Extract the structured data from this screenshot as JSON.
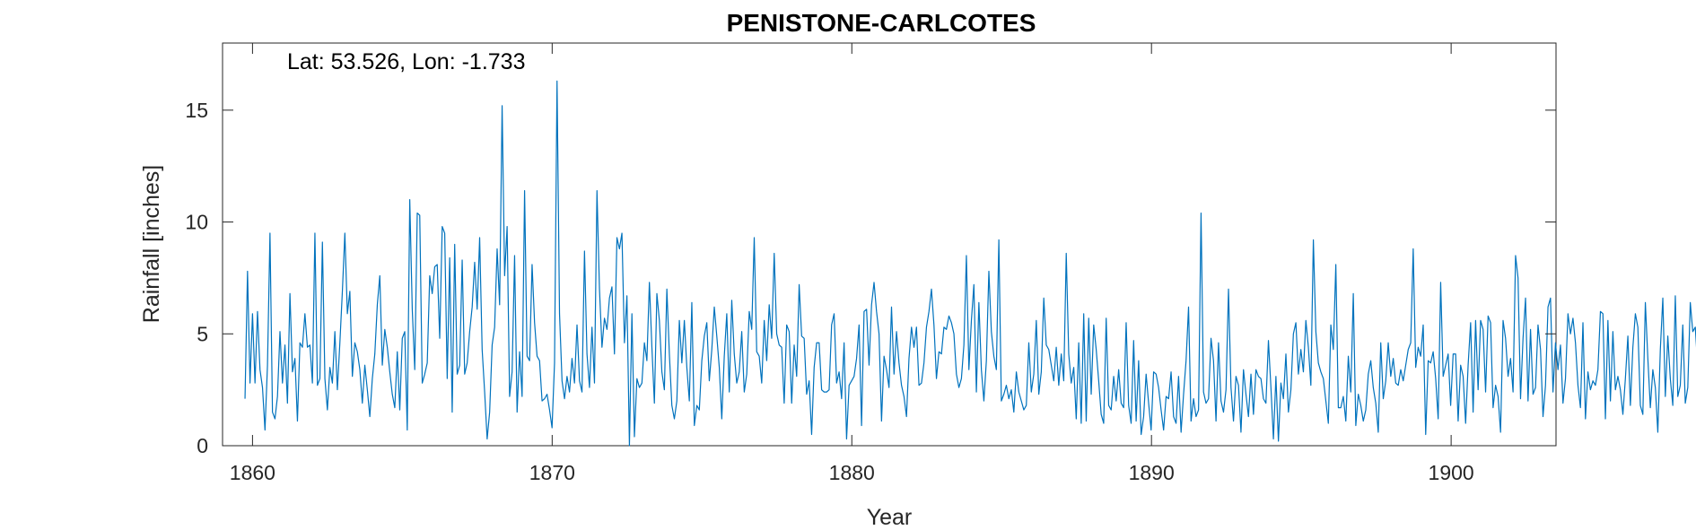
{
  "chart_data": {
    "type": "line",
    "title": "PENISTONE-CARLCOTES",
    "annotation": "Lat: 53.526, Lon: -1.733",
    "xlabel": "Year",
    "ylabel": "Rainfall [inches]",
    "xlim": [
      1859,
      1903.5
    ],
    "ylim": [
      0,
      18
    ],
    "xticks": [
      1860,
      1870,
      1880,
      1890,
      1900
    ],
    "yticks": [
      0,
      5,
      10,
      15
    ],
    "grid": false,
    "line_color": "#0072BD",
    "series": [
      {
        "x_start": 1859.75,
        "x_step": 0.0833,
        "values": [
          2.1,
          7.8,
          2.8,
          5.9,
          2.8,
          6.0,
          3.4,
          2.6,
          0.7,
          3.6,
          9.5,
          1.5,
          1.2,
          2.2,
          5.1,
          2.8,
          4.5,
          1.9,
          6.8,
          3.3,
          3.9,
          1.1,
          4.6,
          4.4,
          5.9,
          4.4,
          4.5,
          2.8,
          9.5,
          2.7,
          3.0,
          9.1,
          3.0,
          1.6,
          3.5,
          2.8,
          5.1,
          2.5,
          4.6,
          6.9,
          9.5,
          5.9,
          6.9,
          3.1,
          4.6,
          4.2,
          3.4,
          1.9,
          3.6,
          2.5,
          1.3,
          3.0,
          4.1,
          6.3,
          7.6,
          3.6,
          5.2,
          4.4,
          3.3,
          2.3,
          1.7,
          4.2,
          1.6,
          4.8,
          5.1,
          0.7,
          11.0,
          6.1,
          3.4,
          10.4,
          10.3,
          2.8,
          3.2,
          3.7,
          7.6,
          6.8,
          8.0,
          8.1,
          4.8,
          9.8,
          9.5,
          3.0,
          8.4,
          1.5,
          9.0,
          3.2,
          3.6,
          8.3,
          3.2,
          3.7,
          5.1,
          6.2,
          8.2,
          6.1,
          9.3,
          4.3,
          2.4,
          0.3,
          1.5,
          4.5,
          5.3,
          8.8,
          6.3,
          15.2,
          7.6,
          9.8,
          2.2,
          3.3,
          8.5,
          1.5,
          4.2,
          2.2,
          11.4,
          4.0,
          3.8,
          8.1,
          5.5,
          4.0,
          3.8,
          2.0,
          2.1,
          2.3,
          1.6,
          0.8,
          3.7,
          16.3,
          5.9,
          2.9,
          2.1,
          3.1,
          2.4,
          3.9,
          2.8,
          5.4,
          2.9,
          2.4,
          8.7,
          4.1,
          2.6,
          5.3,
          2.8,
          11.4,
          7.0,
          4.4,
          5.7,
          5.2,
          6.6,
          7.1,
          4.1,
          9.3,
          8.8,
          9.5,
          4.6,
          6.7,
          0.0,
          5.9,
          0.4,
          3.0,
          2.6,
          2.8,
          4.6,
          3.8,
          7.3,
          4.4,
          1.9,
          6.8,
          5.6,
          3.3,
          2.5,
          7.0,
          4.1,
          1.8,
          1.2,
          2.0,
          5.6,
          3.7,
          5.6,
          3.5,
          2.0,
          6.4,
          0.9,
          1.8,
          1.6,
          3.8,
          4.9,
          5.5,
          2.9,
          4.3,
          6.2,
          4.9,
          3.5,
          1.2,
          4.0,
          5.9,
          2.4,
          6.5,
          4.1,
          2.8,
          3.3,
          5.1,
          2.4,
          3.2,
          6.0,
          5.2,
          9.3,
          4.2,
          4.0,
          2.8,
          5.6,
          3.8,
          6.3,
          4.8,
          8.6,
          5.0,
          4.5,
          4.4,
          1.9,
          5.4,
          5.1,
          1.9,
          4.5,
          3.1,
          7.2,
          4.9,
          4.8,
          2.3,
          2.9,
          0.5,
          3.5,
          4.6,
          4.6,
          2.5,
          2.4,
          2.4,
          2.5,
          5.4,
          5.9,
          2.8,
          3.3,
          2.1,
          4.6,
          0.3,
          2.7,
          2.9,
          3.1,
          3.9,
          5.4,
          0.9,
          6.0,
          6.1,
          3.6,
          6.3,
          7.3,
          6.0,
          5.0,
          1.1,
          4.0,
          3.4,
          2.6,
          6.2,
          3.2,
          5.1,
          3.7,
          2.7,
          2.2,
          1.3,
          3.9,
          5.3,
          4.4,
          5.3,
          2.7,
          2.8,
          3.7,
          5.3,
          6.0,
          7.0,
          5.4,
          3.0,
          4.2,
          4.1,
          5.3,
          5.2,
          5.8,
          5.5,
          5.0,
          3.2,
          2.6,
          3.0,
          4.5,
          8.5,
          3.4,
          5.6,
          7.2,
          2.4,
          6.4,
          3.4,
          2.0,
          3.8,
          7.8,
          5.1,
          4.0,
          3.4,
          9.2,
          2.0,
          2.3,
          2.7,
          2.1,
          2.5,
          1.5,
          3.3,
          2.4,
          2.0,
          1.6,
          1.8,
          4.6,
          2.4,
          3.2,
          5.6,
          2.3,
          3.3,
          6.6,
          4.5,
          4.3,
          3.6,
          2.9,
          4.4,
          2.7,
          4.1,
          2.9,
          8.6,
          4.1,
          2.8,
          3.5,
          1.2,
          4.6,
          1.0,
          5.9,
          1.1,
          5.7,
          2.3,
          5.4,
          4.3,
          2.9,
          1.4,
          1.0,
          5.7,
          1.8,
          1.6,
          3.1,
          2.0,
          3.4,
          1.9,
          1.7,
          5.5,
          1.8,
          1.0,
          4.7,
          1.1,
          3.8,
          0.5,
          1.3,
          3.2,
          1.9,
          0.7,
          3.3,
          3.2,
          2.6,
          1.6,
          0.7,
          2.2,
          2.1,
          3.3,
          1.3,
          1.0,
          3.1,
          0.6,
          2.3,
          3.8,
          6.2,
          1.1,
          2.1,
          1.3,
          1.6,
          10.4,
          2.4,
          1.9,
          2.1,
          4.8,
          3.8,
          1.1,
          4.6,
          2.0,
          1.5,
          2.5,
          7.0,
          2.6,
          1.1,
          3.1,
          2.7,
          0.6,
          3.4,
          2.3,
          1.3,
          3.2,
          1.4,
          3.4,
          3.1,
          3.0,
          2.1,
          1.9,
          4.7,
          2.6,
          0.3,
          3.1,
          0.2,
          2.8,
          2.1,
          4.1,
          1.5,
          2.5,
          5.0,
          5.5,
          3.2,
          4.3,
          3.3,
          5.6,
          4.4,
          2.7,
          9.2,
          5.1,
          3.7,
          3.3,
          3.0,
          2.0,
          1.0,
          5.4,
          4.3,
          8.1,
          1.7,
          1.7,
          2.2,
          1.1,
          4.0,
          2.4,
          6.8,
          0.9,
          2.3,
          1.8,
          1.1,
          1.6,
          3.2,
          3.8,
          2.6,
          1.9,
          0.6,
          4.6,
          2.1,
          2.9,
          4.6,
          3.1,
          3.9,
          2.8,
          2.7,
          3.4,
          2.9,
          3.6,
          4.3,
          4.6,
          8.8,
          3.5,
          4.4,
          4.0,
          5.4,
          0.5,
          3.8,
          3.7,
          4.2,
          3.0,
          1.2,
          7.3,
          3.1,
          3.6,
          4.1,
          1.8,
          4.1,
          4.1,
          1.1,
          3.6,
          3.1,
          1.0,
          3.6,
          5.5,
          1.5,
          5.6,
          2.5,
          5.6,
          5.2,
          2.4,
          5.8,
          5.5,
          1.7,
          2.7,
          2.2,
          0.6,
          5.6,
          4.8,
          3.1,
          3.9,
          2.4,
          8.5,
          7.5,
          2.1,
          4.8,
          6.6,
          2.0,
          5.2,
          2.3,
          2.6,
          5.4,
          4.3,
          1.3,
          2.7,
          6.2,
          6.6,
          2.4,
          4.6,
          3.4,
          4.5,
          1.9,
          3.0,
          5.9,
          5.0,
          5.7,
          4.6,
          2.7,
          1.7,
          5.5,
          1.2,
          3.3,
          2.5,
          2.9,
          2.7,
          3.4,
          6.0,
          5.9,
          1.2,
          5.6,
          2.0,
          5.1,
          2.5,
          3.1,
          2.5,
          1.4,
          3.0,
          4.9,
          1.8,
          4.4,
          5.9,
          5.3,
          1.8,
          1.4,
          6.4,
          3.9,
          1.7,
          3.4,
          2.6,
          0.6,
          4.3,
          6.6,
          2.2,
          4.9,
          3.0,
          1.8,
          6.7,
          2.2,
          2.7,
          5.4,
          1.9,
          2.6,
          6.4,
          5.1,
          5.3,
          3.5,
          4.2,
          1.1,
          5.8,
          6.3,
          5.6,
          2.3,
          2.1,
          3.1,
          4.5,
          6.1,
          5.1,
          3.1,
          2.7,
          3.9,
          5.3,
          1.8,
          4.2,
          6.1,
          1.3,
          2.6,
          6.3,
          3.2,
          0.9,
          3.3,
          3.4,
          5.6,
          5.2,
          4.6,
          3.2,
          1.6,
          3.4,
          2.9,
          6.9,
          3.5,
          2.1,
          1.7,
          1.8,
          3.5,
          2.9,
          4.6,
          4.2,
          3.9,
          6.7,
          3.9,
          4.6,
          2.7,
          3.2,
          1.7,
          3.2,
          4.8,
          3.4,
          3.3,
          3.7,
          4.7,
          2.7,
          4.3,
          4.5,
          2.8,
          1.5,
          0.9,
          2.3,
          4.6,
          4.1,
          5.5,
          3.7,
          1.2,
          6.1,
          5.7,
          2.8,
          5.0,
          1.7,
          2.6,
          1.3,
          3.5,
          2.7,
          2.3,
          3.9,
          3.0,
          5.6,
          2.6,
          4.3
        ]
      }
    ]
  }
}
